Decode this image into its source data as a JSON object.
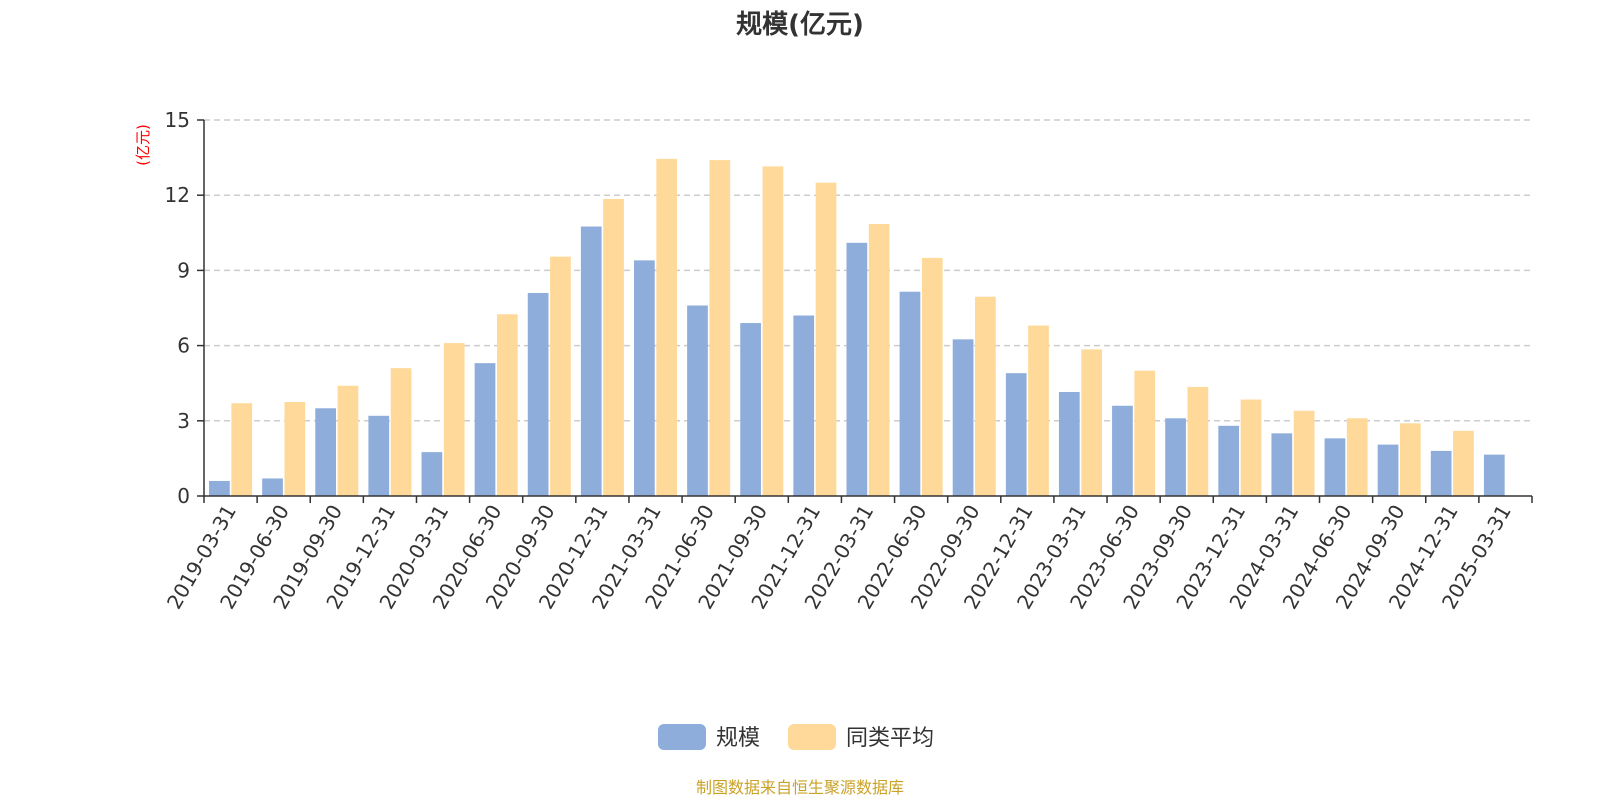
{
  "chart_data": {
    "type": "bar",
    "title": "规模(亿元)",
    "ylabel": "(亿元)",
    "xlabel": "",
    "ylim": [
      0,
      15
    ],
    "yticks": [
      0,
      3,
      6,
      9,
      12,
      15
    ],
    "grid": true,
    "legend_position": "bottom",
    "categories": [
      "2019-03-31",
      "2019-06-30",
      "2019-09-30",
      "2019-12-31",
      "2020-03-31",
      "2020-06-30",
      "2020-09-30",
      "2020-12-31",
      "2021-03-31",
      "2021-06-30",
      "2021-09-30",
      "2021-12-31",
      "2022-03-31",
      "2022-06-30",
      "2022-09-30",
      "2022-12-31",
      "2023-03-31",
      "2023-06-30",
      "2023-09-30",
      "2023-12-31",
      "2024-03-31",
      "2024-06-30",
      "2024-09-30",
      "2024-12-31",
      "2025-03-31"
    ],
    "series": [
      {
        "name": "规模",
        "color": "#8EADDB",
        "values": [
          0.6,
          0.7,
          3.5,
          3.2,
          1.75,
          5.3,
          8.1,
          10.75,
          9.4,
          7.6,
          6.9,
          7.2,
          10.1,
          8.15,
          6.25,
          4.9,
          4.15,
          3.6,
          3.1,
          2.8,
          2.5,
          2.3,
          2.05,
          1.8,
          1.65
        ]
      },
      {
        "name": "同类平均",
        "color": "#FFD999",
        "values": [
          3.7,
          3.75,
          4.4,
          5.1,
          6.1,
          7.25,
          9.55,
          11.85,
          13.45,
          13.4,
          13.15,
          12.5,
          10.85,
          9.5,
          7.95,
          6.8,
          5.85,
          5.0,
          4.35,
          3.85,
          3.4,
          3.1,
          2.9,
          2.6,
          null
        ]
      }
    ]
  },
  "source_note": "制图数据来自恒生聚源数据库",
  "colors": {
    "axis": "#333333",
    "grid": "#cccccc",
    "ylabel": "#ff0000",
    "source": "#c9a227"
  }
}
